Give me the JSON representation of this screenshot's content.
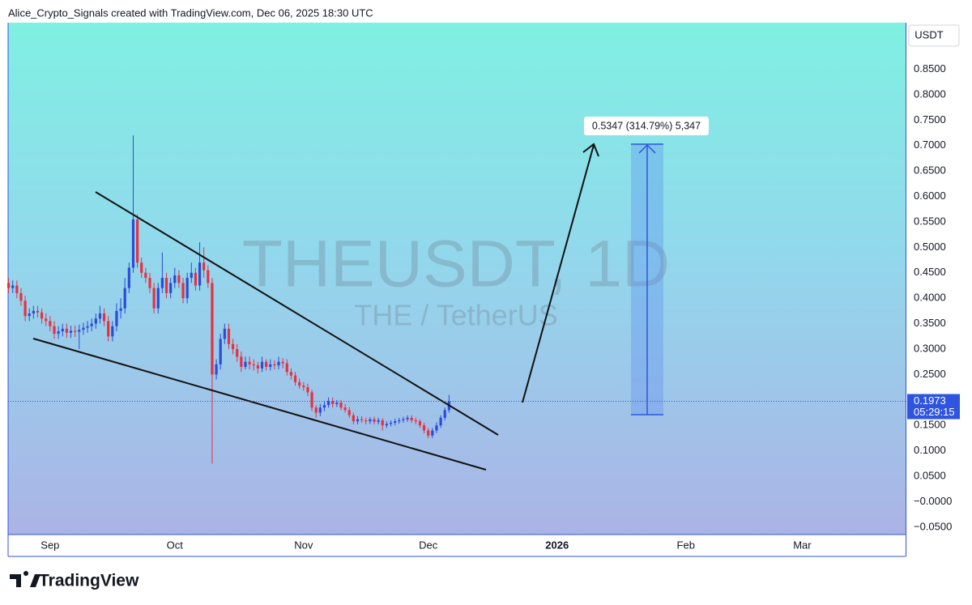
{
  "header": "Alice_Crypto_Signals created with TradingView.com, Dec 06, 2025 18:30 UTC",
  "footer": {
    "logo": "TradingView"
  },
  "chart_data": {
    "type": "candlestick",
    "watermark_symbol": "THEUSDT, 1D",
    "watermark_name": "THE / TetherUS",
    "currency": "USDT",
    "annotation": "0.5347 (314.79%) 5,347",
    "current_price": 0.1973,
    "countdown": "05:29:15",
    "up_color": "#2b4bd8",
    "down_color": "#e8303f",
    "ylim": [
      -0.0646,
      0.9417
    ],
    "yticks": [
      {
        "value": 0.85,
        "label": "0.8500"
      },
      {
        "value": 0.8,
        "label": "0.8000"
      },
      {
        "value": 0.75,
        "label": "0.7500"
      },
      {
        "value": 0.7,
        "label": "0.7000"
      },
      {
        "value": 0.65,
        "label": "0.6500"
      },
      {
        "value": 0.6,
        "label": "0.6000"
      },
      {
        "value": 0.55,
        "label": "0.5500"
      },
      {
        "value": 0.5,
        "label": "0.5000"
      },
      {
        "value": 0.45,
        "label": "0.4500"
      },
      {
        "value": 0.4,
        "label": "0.4000"
      },
      {
        "value": 0.35,
        "label": "0.3500"
      },
      {
        "value": 0.3,
        "label": "0.3000"
      },
      {
        "value": 0.25,
        "label": "0.2500"
      },
      {
        "value": 0.15,
        "label": "0.1500"
      },
      {
        "value": 0.1,
        "label": "0.1000"
      },
      {
        "value": 0.05,
        "label": "0.0500"
      },
      {
        "value": 0,
        "label": "−0.0000"
      },
      {
        "value": -0.05,
        "label": "−0.0500"
      }
    ],
    "future_ticks": [
      "2026",
      "Feb",
      "Mar"
    ],
    "categories": [
      null,
      null,
      null,
      null,
      null,
      null,
      null,
      null,
      null,
      null,
      "Sep",
      null,
      null,
      null,
      null,
      null,
      null,
      null,
      null,
      null,
      null,
      null,
      null,
      null,
      null,
      null,
      null,
      null,
      null,
      null,
      null,
      null,
      null,
      null,
      null,
      null,
      null,
      null,
      null,
      null,
      "Oct",
      null,
      null,
      null,
      null,
      null,
      null,
      null,
      null,
      null,
      null,
      null,
      null,
      null,
      null,
      null,
      null,
      null,
      null,
      null,
      null,
      null,
      null,
      null,
      null,
      null,
      null,
      null,
      null,
      null,
      null,
      "Nov",
      null,
      null,
      null,
      null,
      null,
      null,
      null,
      null,
      null,
      null,
      null,
      null,
      null,
      null,
      null,
      null,
      null,
      null,
      null,
      null,
      null,
      null,
      null,
      null,
      null,
      null,
      null,
      null,
      null,
      "Dec",
      null,
      null,
      null,
      null,
      null
    ],
    "open": [
      0.43,
      0.42,
      0.425,
      0.41,
      0.395,
      0.365,
      0.37,
      0.375,
      0.372,
      0.36,
      0.355,
      0.345,
      0.33,
      0.335,
      0.34,
      0.332,
      0.336,
      0.334,
      0.338,
      0.342,
      0.345,
      0.35,
      0.36,
      0.37,
      0.355,
      0.325,
      0.345,
      0.375,
      0.38,
      0.42,
      0.46,
      0.555,
      0.47,
      0.45,
      0.44,
      0.42,
      0.38,
      0.42,
      0.44,
      0.41,
      0.43,
      0.445,
      0.43,
      0.4,
      0.44,
      0.45,
      0.425,
      0.47,
      0.455,
      0.43,
      0.25,
      0.27,
      0.32,
      0.34,
      0.31,
      0.3,
      0.285,
      0.265,
      0.275,
      0.27,
      0.268,
      0.262,
      0.275,
      0.265,
      0.27,
      0.268,
      0.275,
      0.272,
      0.255,
      0.248,
      0.235,
      0.228,
      0.225,
      0.215,
      0.185,
      0.175,
      0.185,
      0.19,
      0.198,
      0.192,
      0.195,
      0.185,
      0.18,
      0.17,
      0.158,
      0.162,
      0.16,
      0.158,
      0.162,
      0.157,
      0.16,
      0.15,
      0.153,
      0.155,
      0.158,
      0.16,
      0.162,
      0.165,
      0.16,
      0.158,
      0.15,
      0.14,
      0.13,
      0.14,
      0.15,
      0.165,
      0.18
    ],
    "high": [
      0.44,
      0.435,
      0.435,
      0.42,
      0.405,
      0.38,
      0.385,
      0.385,
      0.38,
      0.37,
      0.365,
      0.355,
      0.345,
      0.35,
      0.35,
      0.346,
      0.346,
      0.348,
      0.352,
      0.355,
      0.36,
      0.37,
      0.385,
      0.38,
      0.365,
      0.355,
      0.39,
      0.4,
      0.44,
      0.47,
      0.72,
      0.565,
      0.48,
      0.46,
      0.45,
      0.43,
      0.43,
      0.49,
      0.45,
      0.44,
      0.46,
      0.455,
      0.44,
      0.45,
      0.47,
      0.46,
      0.51,
      0.5,
      0.465,
      0.44,
      0.28,
      0.33,
      0.35,
      0.35,
      0.32,
      0.31,
      0.295,
      0.285,
      0.285,
      0.28,
      0.275,
      0.285,
      0.28,
      0.28,
      0.278,
      0.285,
      0.282,
      0.28,
      0.262,
      0.255,
      0.242,
      0.235,
      0.232,
      0.22,
      0.19,
      0.192,
      0.198,
      0.205,
      0.205,
      0.2,
      0.2,
      0.192,
      0.186,
      0.175,
      0.168,
      0.168,
      0.165,
      0.166,
      0.167,
      0.165,
      0.164,
      0.158,
      0.16,
      0.163,
      0.165,
      0.167,
      0.17,
      0.17,
      0.165,
      0.162,
      0.155,
      0.145,
      0.145,
      0.156,
      0.17,
      0.185,
      0.21
    ],
    "low": [
      0.41,
      0.41,
      0.4,
      0.385,
      0.355,
      0.355,
      0.36,
      0.362,
      0.35,
      0.345,
      0.335,
      0.32,
      0.32,
      0.325,
      0.322,
      0.322,
      0.324,
      0.3,
      0.328,
      0.332,
      0.335,
      0.34,
      0.35,
      0.345,
      0.315,
      0.315,
      0.335,
      0.36,
      0.37,
      0.41,
      0.45,
      0.46,
      0.44,
      0.43,
      0.41,
      0.37,
      0.37,
      0.41,
      0.4,
      0.4,
      0.42,
      0.42,
      0.39,
      0.39,
      0.43,
      0.415,
      0.415,
      0.44,
      0.42,
      0.075,
      0.24,
      0.26,
      0.31,
      0.3,
      0.29,
      0.275,
      0.255,
      0.26,
      0.26,
      0.258,
      0.252,
      0.255,
      0.258,
      0.258,
      0.26,
      0.26,
      0.262,
      0.248,
      0.24,
      0.228,
      0.222,
      0.218,
      0.208,
      0.178,
      0.165,
      0.168,
      0.178,
      0.185,
      0.185,
      0.186,
      0.18,
      0.175,
      0.165,
      0.152,
      0.152,
      0.155,
      0.152,
      0.153,
      0.152,
      0.152,
      0.14,
      0.145,
      0.148,
      0.15,
      0.153,
      0.155,
      0.157,
      0.155,
      0.152,
      0.145,
      0.135,
      0.125,
      0.125,
      0.135,
      0.145,
      0.16,
      0.175
    ],
    "close": [
      0.42,
      0.425,
      0.41,
      0.395,
      0.365,
      0.37,
      0.375,
      0.372,
      0.36,
      0.355,
      0.345,
      0.33,
      0.335,
      0.34,
      0.332,
      0.336,
      0.334,
      0.338,
      0.342,
      0.345,
      0.35,
      0.36,
      0.37,
      0.355,
      0.325,
      0.345,
      0.375,
      0.38,
      0.42,
      0.46,
      0.555,
      0.47,
      0.45,
      0.44,
      0.42,
      0.38,
      0.42,
      0.44,
      0.41,
      0.43,
      0.445,
      0.43,
      0.4,
      0.44,
      0.45,
      0.425,
      0.47,
      0.455,
      0.43,
      0.25,
      0.27,
      0.32,
      0.34,
      0.31,
      0.3,
      0.285,
      0.265,
      0.275,
      0.27,
      0.268,
      0.262,
      0.275,
      0.265,
      0.27,
      0.268,
      0.275,
      0.272,
      0.255,
      0.248,
      0.235,
      0.228,
      0.225,
      0.215,
      0.185,
      0.175,
      0.185,
      0.19,
      0.198,
      0.192,
      0.195,
      0.185,
      0.18,
      0.17,
      0.158,
      0.162,
      0.16,
      0.158,
      0.162,
      0.157,
      0.16,
      0.15,
      0.153,
      0.155,
      0.158,
      0.16,
      0.162,
      0.165,
      0.16,
      0.158,
      0.15,
      0.14,
      0.13,
      0.14,
      0.15,
      0.165,
      0.18,
      0.197
    ]
  }
}
